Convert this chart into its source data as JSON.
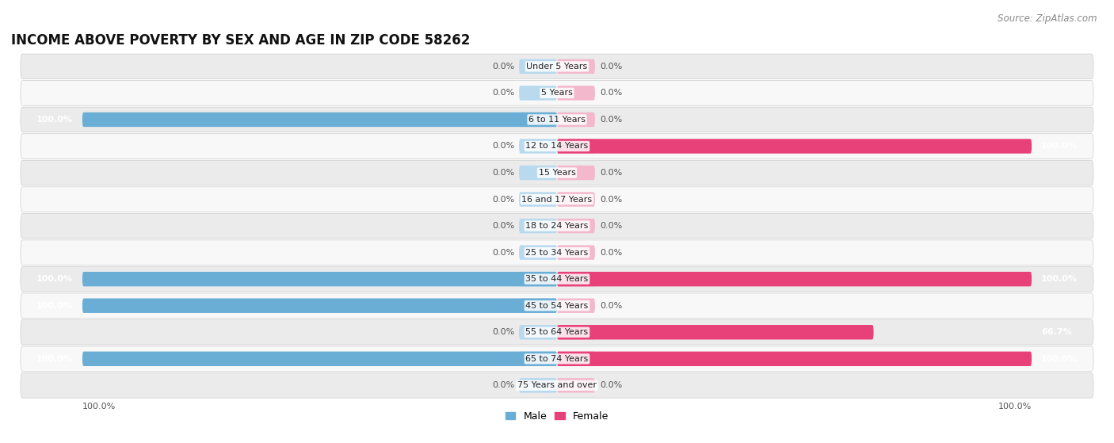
{
  "title": "INCOME ABOVE POVERTY BY SEX AND AGE IN ZIP CODE 58262",
  "source": "Source: ZipAtlas.com",
  "categories": [
    "Under 5 Years",
    "5 Years",
    "6 to 11 Years",
    "12 to 14 Years",
    "15 Years",
    "16 and 17 Years",
    "18 to 24 Years",
    "25 to 34 Years",
    "35 to 44 Years",
    "45 to 54 Years",
    "55 to 64 Years",
    "65 to 74 Years",
    "75 Years and over"
  ],
  "male_values": [
    0.0,
    0.0,
    100.0,
    0.0,
    0.0,
    0.0,
    0.0,
    0.0,
    100.0,
    100.0,
    0.0,
    100.0,
    0.0
  ],
  "female_values": [
    0.0,
    0.0,
    0.0,
    100.0,
    0.0,
    0.0,
    0.0,
    0.0,
    100.0,
    0.0,
    66.7,
    100.0,
    0.0
  ],
  "male_color": "#6aaed6",
  "male_color_light": "#b8d9ee",
  "female_color": "#e8417a",
  "female_color_light": "#f4b8cd",
  "male_label": "Male",
  "female_label": "Female",
  "row_bg_odd": "#ebebeb",
  "row_bg_even": "#f8f8f8",
  "xlim": 100.0,
  "title_fontsize": 12,
  "source_fontsize": 8.5,
  "label_fontsize": 8,
  "cat_fontsize": 8,
  "tick_fontsize": 8,
  "bar_height": 0.55,
  "min_bar_width": 8,
  "fig_bg_color": "#ffffff"
}
